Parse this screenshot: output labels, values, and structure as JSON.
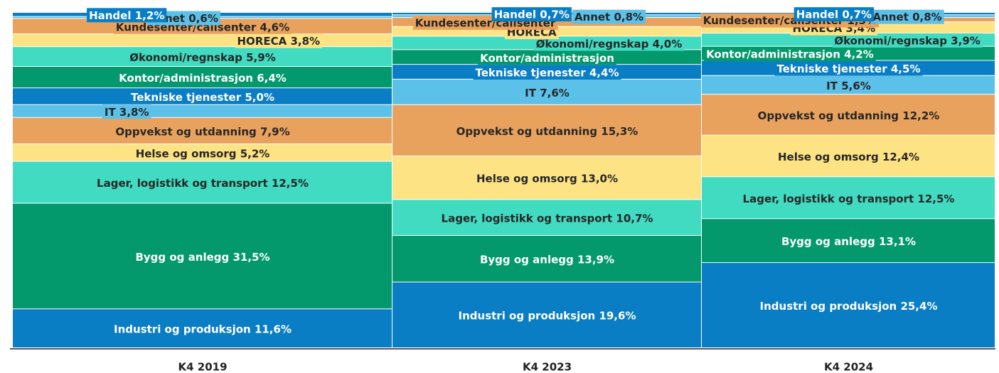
{
  "chart_data": {
    "type": "stacked_bar_100",
    "categories": [
      "K4 2019",
      "K4 2023",
      "K4 2024"
    ],
    "ylim": [
      0,
      100
    ],
    "series": [
      {
        "name": "Industri og produksjon",
        "color": "#0a7ec5",
        "values": [
          11.6,
          19.6,
          25.4
        ],
        "value_labels": [
          "11,6%",
          "19,6%",
          "25,4%"
        ]
      },
      {
        "name": "Bygg og anlegg",
        "color": "#03996c",
        "values": [
          31.5,
          13.9,
          13.1
        ],
        "value_labels": [
          "31,5%",
          "13,9%",
          "13,1%"
        ]
      },
      {
        "name": "Lager, logistikk og transport",
        "color": "#40dbc1",
        "values": [
          12.5,
          10.7,
          12.5
        ],
        "value_labels": [
          "12,5%",
          "10,7%",
          "12,5%"
        ]
      },
      {
        "name": "Helse og omsorg",
        "color": "#fde384",
        "values": [
          5.2,
          13.0,
          12.4
        ],
        "value_labels": [
          "5,2%",
          "13,0%",
          "12,4%"
        ]
      },
      {
        "name": "Oppvekst og utdanning",
        "color": "#e8a25d",
        "values": [
          7.9,
          15.3,
          12.2
        ],
        "value_labels": [
          "7,9%",
          "15,3%",
          "12,2%"
        ]
      },
      {
        "name": "IT",
        "color": "#5cc1e8",
        "values": [
          3.8,
          7.6,
          5.6
        ],
        "value_labels": [
          "3,8%",
          "7,6%",
          "5,6%"
        ]
      },
      {
        "name": "Tekniske tjenester",
        "color": "#0a7ec5",
        "values": [
          5.0,
          4.4,
          4.5
        ],
        "value_labels": [
          "5,0%",
          "4,4%",
          "4,5%"
        ]
      },
      {
        "name": "Kontor/administrasjon",
        "color": "#03996c",
        "values": [
          6.4,
          4.4,
          4.2
        ],
        "value_labels": [
          "6,4%",
          null,
          "4,2%"
        ]
      },
      {
        "name": "Økonomi/regnskap",
        "color": "#40dbc1",
        "values": [
          5.9,
          4.0,
          3.9
        ],
        "value_labels": [
          "5,9%",
          "4,0%",
          "3,9%"
        ]
      },
      {
        "name": "HORECA",
        "color": "#fde384",
        "values": [
          3.8,
          2.9,
          3.4
        ],
        "value_labels": [
          "3,8%",
          null,
          "3,4%"
        ]
      },
      {
        "name": "Kundesenter/callsenter",
        "color": "#e8a25d",
        "values": [
          4.6,
          2.7,
          1.3
        ],
        "value_labels": [
          "4,6%",
          null,
          "1,3%"
        ]
      },
      {
        "name": "Annet",
        "color": "#5cc1e8",
        "values": [
          0.6,
          0.8,
          0.8
        ],
        "value_labels": [
          "0,6%",
          "0,8%",
          "0,8%"
        ]
      },
      {
        "name": "Handel",
        "color": "#0a7ec5",
        "values": [
          1.2,
          0.7,
          0.7
        ],
        "value_labels": [
          "1,2%",
          "0,7%",
          "0,7%"
        ]
      }
    ]
  }
}
